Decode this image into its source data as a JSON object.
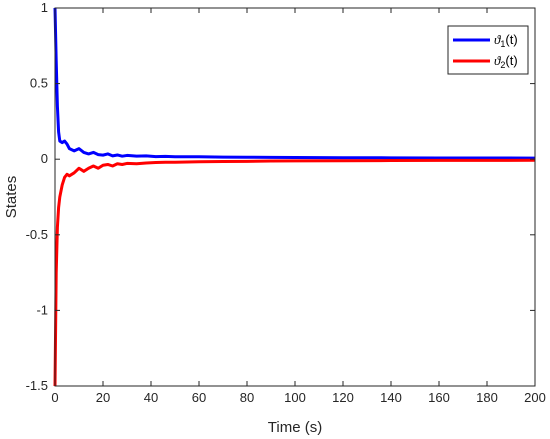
{
  "chart_data": {
    "type": "line",
    "xlabel": "Time (s)",
    "ylabel": "States",
    "xlim": [
      0,
      200
    ],
    "ylim": [
      -1.5,
      1
    ],
    "xticks": [
      0,
      20,
      40,
      60,
      80,
      100,
      120,
      140,
      160,
      180,
      200
    ],
    "yticks": [
      -1.5,
      -1,
      -0.5,
      0,
      0.5,
      1
    ],
    "ytick_labels": [
      "-1.5",
      "-1",
      "-0.5",
      "0",
      "0.5",
      "1"
    ],
    "grid": false,
    "legend_position": "top-right",
    "series": [
      {
        "name": "ϑ1(t)",
        "legend": {
          "symbol": "ϑ",
          "sub": "1",
          "suffix": "(t)"
        },
        "color": "#0000ff",
        "x": [
          0,
          0.5,
          1,
          1.5,
          2,
          3,
          4,
          5,
          6,
          8,
          10,
          12,
          14,
          16,
          18,
          20,
          22,
          24,
          26,
          28,
          30,
          34,
          38,
          42,
          46,
          50,
          60,
          70,
          80,
          90,
          100,
          120,
          140,
          160,
          180,
          200
        ],
        "y": [
          1,
          0.65,
          0.35,
          0.18,
          0.12,
          0.11,
          0.12,
          0.1,
          0.07,
          0.055,
          0.07,
          0.045,
          0.035,
          0.045,
          0.03,
          0.027,
          0.035,
          0.022,
          0.028,
          0.02,
          0.025,
          0.02,
          0.022,
          0.017,
          0.019,
          0.016,
          0.016,
          0.014,
          0.013,
          0.012,
          0.011,
          0.01,
          0.009,
          0.008,
          0.008,
          0.007
        ]
      },
      {
        "name": "ϑ2(t)",
        "legend": {
          "symbol": "ϑ",
          "sub": "2",
          "suffix": "(t)"
        },
        "color": "#ff0000",
        "x": [
          0,
          0.5,
          1,
          1.5,
          2,
          3,
          4,
          5,
          6,
          8,
          10,
          12,
          14,
          16,
          18,
          20,
          22,
          24,
          26,
          28,
          30,
          34,
          38,
          42,
          46,
          50,
          60,
          70,
          80,
          90,
          100,
          120,
          140,
          160,
          180,
          200
        ],
        "y": [
          -1.5,
          -0.75,
          -0.45,
          -0.32,
          -0.25,
          -0.17,
          -0.12,
          -0.1,
          -0.11,
          -0.09,
          -0.06,
          -0.08,
          -0.06,
          -0.045,
          -0.06,
          -0.04,
          -0.035,
          -0.045,
          -0.03,
          -0.035,
          -0.028,
          -0.03,
          -0.025,
          -0.022,
          -0.02,
          -0.02,
          -0.017,
          -0.015,
          -0.014,
          -0.012,
          -0.011,
          -0.01,
          -0.009,
          -0.008,
          -0.008,
          -0.007
        ]
      }
    ]
  }
}
